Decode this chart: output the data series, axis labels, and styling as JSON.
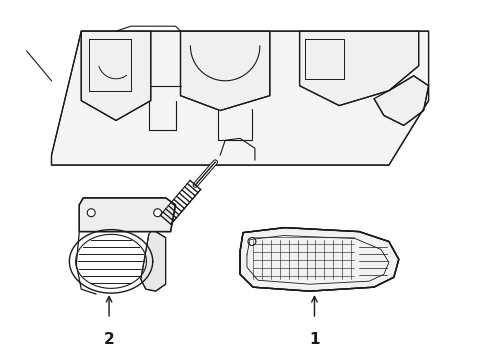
{
  "background_color": "#ffffff",
  "line_color": "#1a1a1a",
  "fig_width": 4.9,
  "fig_height": 3.6,
  "dpi": 100,
  "label_1": "1",
  "label_2": "2"
}
